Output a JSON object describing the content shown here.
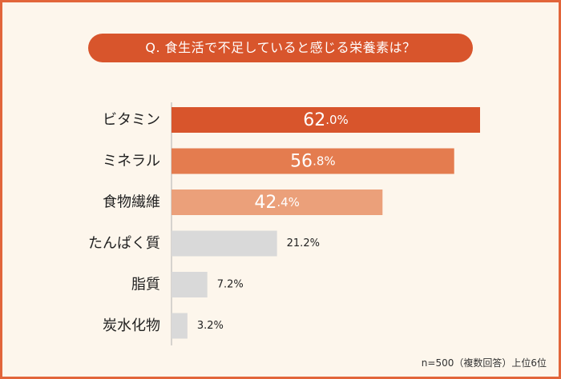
{
  "title": "Q. 食生活で不足していると感じる栄養素は？",
  "footnote": "n=500（複数回答）上位6位",
  "colors": {
    "border": "#e2653a",
    "background": "#fdf6ec",
    "pill": "#d8552c",
    "axis": "#b0b0b0",
    "bar_gray": "#d9d9d9"
  },
  "chart_data": {
    "type": "bar",
    "orientation": "horizontal",
    "categories": [
      "ビタミン",
      "ミネラル",
      "食物繊維",
      "たんぱく質",
      "脂質",
      "炭水化物"
    ],
    "values": [
      62.0,
      56.8,
      42.4,
      21.2,
      7.2,
      3.2
    ],
    "value_labels": [
      "62.0%",
      "56.8%",
      "42.4%",
      "21.2%",
      "7.2%",
      "3.2%"
    ],
    "bar_colors": [
      "#d8552c",
      "#e47c4f",
      "#eba07a",
      "#d9d9d9",
      "#d9d9d9",
      "#d9d9d9"
    ],
    "label_inside": [
      true,
      true,
      true,
      false,
      false,
      false
    ],
    "xlim": [
      0,
      62.0
    ]
  }
}
